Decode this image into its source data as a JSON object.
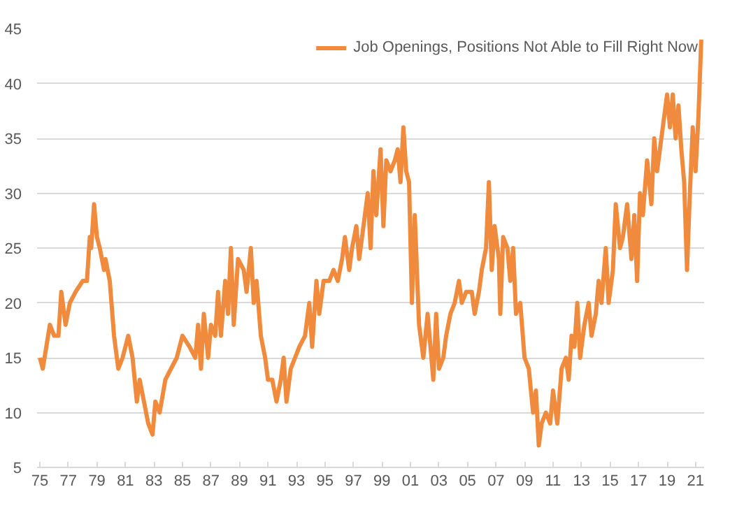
{
  "chart_data": {
    "type": "line",
    "legend": "top right",
    "grid": "y",
    "line_style": "solid",
    "marker": "none",
    "xlim": [
      1974.8,
      2021.6
    ],
    "ylim": [
      5,
      45
    ],
    "xticks": [
      {
        "value": 1975,
        "label": "75"
      },
      {
        "value": 1977,
        "label": "77"
      },
      {
        "value": 1979,
        "label": "79"
      },
      {
        "value": 1981,
        "label": "81"
      },
      {
        "value": 1983,
        "label": "83"
      },
      {
        "value": 1985,
        "label": "85"
      },
      {
        "value": 1987,
        "label": "87"
      },
      {
        "value": 1989,
        "label": "89"
      },
      {
        "value": 1991,
        "label": "91"
      },
      {
        "value": 1993,
        "label": "93"
      },
      {
        "value": 1995,
        "label": "95"
      },
      {
        "value": 1997,
        "label": "97"
      },
      {
        "value": 1999,
        "label": "99"
      },
      {
        "value": 2001,
        "label": "01"
      },
      {
        "value": 2003,
        "label": "03"
      },
      {
        "value": 2005,
        "label": "05"
      },
      {
        "value": 2007,
        "label": "07"
      },
      {
        "value": 2009,
        "label": "09"
      },
      {
        "value": 2011,
        "label": "11"
      },
      {
        "value": 2013,
        "label": "13"
      },
      {
        "value": 2015,
        "label": "15"
      },
      {
        "value": 2017,
        "label": "17"
      },
      {
        "value": 2019,
        "label": "19"
      },
      {
        "value": 2021,
        "label": "21"
      }
    ],
    "yticks": [
      5,
      10,
      15,
      20,
      25,
      30,
      35,
      40,
      45
    ],
    "series": [
      {
        "name": "Job Openings, Positions Not Able to Fill Right Now",
        "color": "#f08a3c",
        "x": [
          1975.0,
          1975.2,
          1975.7,
          1976.0,
          1976.3,
          1976.5,
          1976.8,
          1977.1,
          1977.5,
          1978.0,
          1978.3,
          1978.5,
          1978.6,
          1978.8,
          1979.0,
          1979.2,
          1979.5,
          1979.6,
          1979.9,
          1980.2,
          1980.5,
          1980.8,
          1981.2,
          1981.5,
          1981.8,
          1982.0,
          1982.3,
          1982.6,
          1982.9,
          1983.1,
          1983.4,
          1983.8,
          1984.2,
          1984.6,
          1985.0,
          1985.5,
          1985.9,
          1986.1,
          1986.3,
          1986.5,
          1986.8,
          1987.0,
          1987.3,
          1987.5,
          1987.7,
          1988.0,
          1988.2,
          1988.4,
          1988.6,
          1988.9,
          1989.3,
          1989.5,
          1989.8,
          1990.0,
          1990.2,
          1990.5,
          1990.8,
          1991.0,
          1991.3,
          1991.6,
          1991.9,
          1992.1,
          1992.3,
          1992.6,
          1992.9,
          1993.2,
          1993.6,
          1993.9,
          1994.1,
          1994.4,
          1994.6,
          1994.9,
          1995.3,
          1995.6,
          1995.9,
          1996.2,
          1996.4,
          1996.7,
          1996.9,
          1997.2,
          1997.4,
          1997.7,
          1998.0,
          1998.2,
          1998.4,
          1998.6,
          1998.9,
          1999.1,
          1999.3,
          1999.6,
          1999.9,
          2000.1,
          2000.3,
          2000.5,
          2000.7,
          2000.9,
          2001.1,
          2001.3,
          2001.6,
          2001.9,
          2002.2,
          2002.4,
          2002.6,
          2002.8,
          2003.0,
          2003.3,
          2003.5,
          2003.8,
          2004.1,
          2004.4,
          2004.6,
          2004.9,
          2005.3,
          2005.5,
          2005.8,
          2006.0,
          2006.3,
          2006.5,
          2006.7,
          2006.9,
          2007.2,
          2007.3,
          2007.5,
          2007.8,
          2008.0,
          2008.2,
          2008.4,
          2008.7,
          2009.0,
          2009.3,
          2009.6,
          2009.8,
          2010.0,
          2010.2,
          2010.5,
          2010.8,
          2011.0,
          2011.3,
          2011.6,
          2011.9,
          2012.1,
          2012.3,
          2012.5,
          2012.7,
          2012.9,
          2013.2,
          2013.5,
          2013.7,
          2014.0,
          2014.2,
          2014.4,
          2014.7,
          2014.9,
          2015.2,
          2015.4,
          2015.7,
          2015.9,
          2016.2,
          2016.5,
          2016.7,
          2016.9,
          2017.1,
          2017.3,
          2017.6,
          2017.9,
          2018.1,
          2018.3,
          2018.5,
          2018.8,
          2019.0,
          2019.2,
          2019.4,
          2019.6,
          2019.8,
          2020.0,
          2020.2,
          2020.4,
          2020.6,
          2020.8,
          2021.0,
          2021.2,
          2021.4
        ],
        "values": [
          15,
          14,
          18,
          17,
          17,
          21,
          18,
          20,
          21,
          22,
          22,
          26,
          25,
          29,
          26,
          25,
          23,
          24,
          22,
          17,
          14,
          15,
          17,
          15,
          11,
          13,
          11,
          9,
          8,
          11,
          10,
          13,
          14,
          15,
          17,
          16,
          15,
          18,
          14,
          19,
          15,
          18,
          17,
          21,
          17,
          22,
          19,
          25,
          18,
          24,
          23,
          21,
          25,
          20,
          22,
          17,
          15,
          13,
          13,
          11,
          13,
          15,
          11,
          14,
          15,
          16,
          17,
          20,
          16,
          22,
          19,
          22,
          22,
          23,
          22,
          24,
          26,
          23,
          25,
          27,
          24,
          27,
          30,
          25,
          32,
          28,
          34,
          27,
          33,
          32,
          33,
          34,
          31,
          36,
          32,
          31,
          20,
          28,
          18,
          15,
          19,
          16,
          13,
          19,
          14,
          15,
          17,
          19,
          20,
          22,
          20,
          21,
          21,
          19,
          21,
          23,
          25,
          31,
          23,
          27,
          24,
          19,
          26,
          25,
          22,
          25,
          19,
          20,
          15,
          14,
          10,
          12,
          7,
          9,
          10,
          9,
          12,
          9,
          14,
          15,
          13,
          17,
          16,
          20,
          15,
          18,
          20,
          17,
          19,
          22,
          20,
          25,
          20,
          23,
          29,
          25,
          26,
          29,
          24,
          28,
          22,
          30,
          28,
          33,
          29,
          35,
          32,
          34,
          37,
          39,
          36,
          39,
          35,
          38,
          34,
          31,
          23,
          30,
          36,
          32,
          37,
          44
        ]
      }
    ]
  }
}
